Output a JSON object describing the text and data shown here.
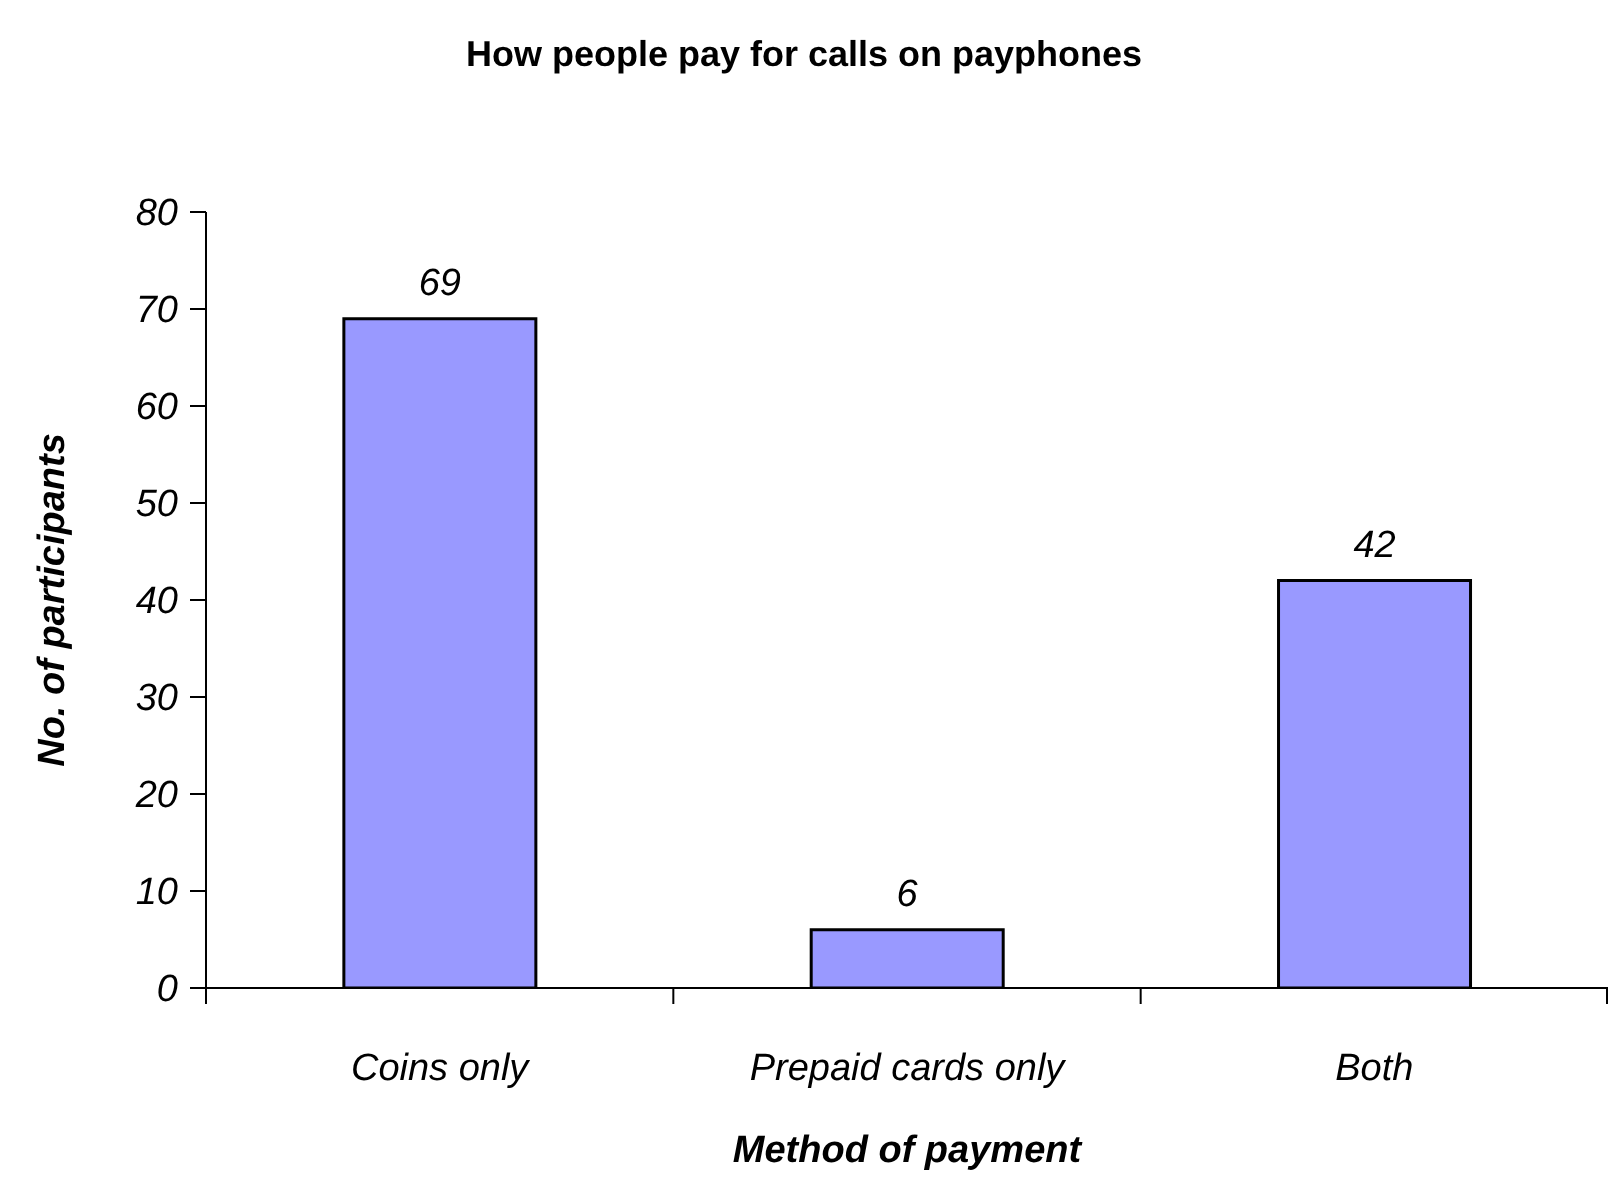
{
  "chart_data": {
    "type": "bar",
    "title": "How people pay for calls on payphones",
    "xlabel": "Method of payment",
    "ylabel": "No. of participants",
    "categories": [
      "Coins only",
      "Prepaid cards only",
      "Both"
    ],
    "values": [
      69,
      6,
      42
    ],
    "color": "#9999ff",
    "ylim": [
      0,
      80
    ],
    "yticks": [
      0,
      10,
      20,
      30,
      40,
      50,
      60,
      70,
      80
    ],
    "data_labels": true
  }
}
